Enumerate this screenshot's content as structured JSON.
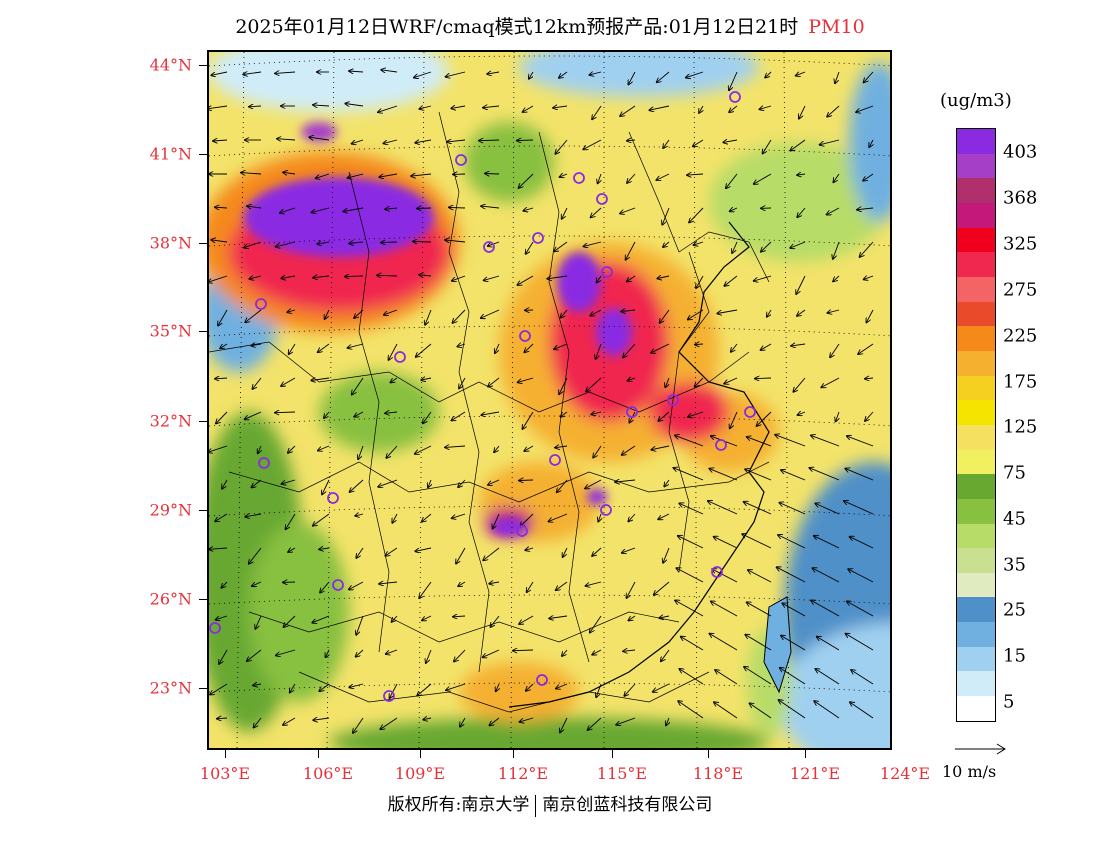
{
  "title": {
    "main": "2025年01月12日WRF/cmaq模式12km预报产品:01月12日21时",
    "variable": "PM10"
  },
  "map": {
    "lat_labels": [
      "44°N",
      "41°N",
      "38°N",
      "35°N",
      "32°N",
      "29°N",
      "26°N",
      "23°N"
    ],
    "lon_labels": [
      "103°E",
      "106°E",
      "109°E",
      "112°E",
      "115°E",
      "118°E",
      "121°E",
      "124°E"
    ]
  },
  "legend": {
    "unit": "(ug/m3)",
    "labels": [
      "403",
      "368",
      "325",
      "275",
      "225",
      "175",
      "125",
      "75",
      "45",
      "35",
      "25",
      "15",
      "5"
    ],
    "colors": [
      "#8a2be2",
      "#a53fc8",
      "#b0306e",
      "#c4187a",
      "#f0001c",
      "#f02850",
      "#f56464",
      "#e84a2a",
      "#f5891a",
      "#f5b030",
      "#f5d020",
      "#f5e400",
      "#f5e060",
      "#f0f060",
      "#68a830",
      "#88c040",
      "#b8dc68",
      "#c8e090",
      "#e0ecc0",
      "#5090c8",
      "#70b0e0",
      "#a0d0f0",
      "#d0ecf8",
      "#ffffff"
    ]
  },
  "wind_reference": {
    "label": "10 m/s"
  },
  "copyright": {
    "left": "版权所有:南京大学",
    "right": "南京创蓝科技有限公司"
  },
  "icons": {
    "station_marker": "circle-marker-icon",
    "wind_vector": "wind-arrow-icon"
  }
}
